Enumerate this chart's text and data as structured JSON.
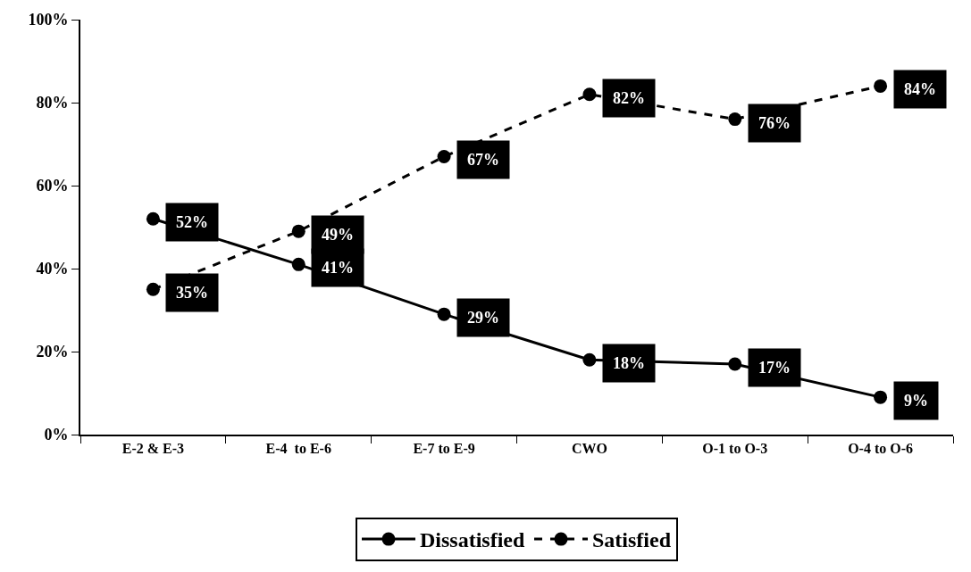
{
  "chart_data": {
    "type": "line",
    "categories": [
      "E-2 & E-3",
      "E-4  to E-6",
      "E-7 to E-9",
      "CWO",
      "O-1 to O-3",
      "O-4 to O-6"
    ],
    "series": [
      {
        "name": "Dissatisfied",
        "color": "#000000",
        "line_style": "solid",
        "values": [
          52,
          41,
          29,
          18,
          17,
          9
        ],
        "value_labels": [
          "52%",
          "41%",
          "29%",
          "18%",
          "17%",
          "9%"
        ]
      },
      {
        "name": "Satisfied",
        "color": "#000000",
        "line_style": "dashed",
        "values": [
          35,
          49,
          67,
          82,
          76,
          84
        ],
        "value_labels": [
          "35%",
          "49%",
          "67%",
          "82%",
          "76%",
          "84%"
        ]
      }
    ],
    "ylim": [
      0,
      100
    ],
    "yticks": [
      {
        "value": 0,
        "label": "0%"
      },
      {
        "value": 20,
        "label": "20%"
      },
      {
        "value": 40,
        "label": "40%"
      },
      {
        "value": 60,
        "label": "60%"
      },
      {
        "value": 80,
        "label": "80%"
      },
      {
        "value": 100,
        "label": "100%"
      }
    ],
    "marker": "circle",
    "legend": "bottom"
  }
}
